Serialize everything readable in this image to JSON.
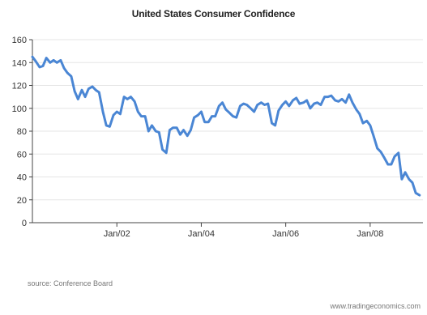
{
  "chart_data": {
    "type": "line",
    "title": "United States Consumer Confidence",
    "xlabel": "",
    "ylabel": "",
    "ylim": [
      0,
      160
    ],
    "yticks": [
      0,
      20,
      40,
      60,
      80,
      100,
      120,
      140,
      160
    ],
    "xticks": [
      {
        "label": "Jan/02",
        "x": 2002.0
      },
      {
        "label": "Jan/04",
        "x": 2004.0
      },
      {
        "label": "Jan/06",
        "x": 2006.0
      },
      {
        "label": "Jan/08",
        "x": 2008.0
      }
    ],
    "xlim": [
      2000.0,
      2009.25
    ],
    "grid": "horizontal",
    "series": [
      {
        "color": "#4a86d4",
        "x": [
          2000.0,
          2000.08,
          2000.17,
          2000.25,
          2000.33,
          2000.42,
          2000.5,
          2000.58,
          2000.67,
          2000.75,
          2000.83,
          2000.92,
          2001.0,
          2001.08,
          2001.17,
          2001.25,
          2001.33,
          2001.42,
          2001.5,
          2001.58,
          2001.67,
          2001.75,
          2001.83,
          2001.92,
          2002.0,
          2002.08,
          2002.17,
          2002.25,
          2002.33,
          2002.42,
          2002.5,
          2002.58,
          2002.67,
          2002.75,
          2002.83,
          2002.92,
          2003.0,
          2003.08,
          2003.17,
          2003.25,
          2003.33,
          2003.42,
          2003.5,
          2003.58,
          2003.67,
          2003.75,
          2003.83,
          2003.92,
          2004.0,
          2004.08,
          2004.17,
          2004.25,
          2004.33,
          2004.42,
          2004.5,
          2004.58,
          2004.67,
          2004.75,
          2004.83,
          2004.92,
          2005.0,
          2005.08,
          2005.17,
          2005.25,
          2005.33,
          2005.42,
          2005.5,
          2005.58,
          2005.67,
          2005.75,
          2005.83,
          2005.92,
          2006.0,
          2006.08,
          2006.17,
          2006.25,
          2006.33,
          2006.42,
          2006.5,
          2006.58,
          2006.67,
          2006.75,
          2006.83,
          2006.92,
          2007.0,
          2007.08,
          2007.17,
          2007.25,
          2007.33,
          2007.42,
          2007.5,
          2007.58,
          2007.67,
          2007.75,
          2007.83,
          2007.92,
          2008.0,
          2008.08,
          2008.17,
          2008.25,
          2008.33,
          2008.42,
          2008.5,
          2008.58,
          2008.67,
          2008.75,
          2008.83,
          2008.92,
          2009.0,
          2009.08,
          2009.17
        ],
        "values": [
          145,
          141,
          136,
          137,
          144,
          140,
          142,
          140,
          142,
          135,
          131,
          128,
          115,
          108,
          116,
          110,
          117,
          119,
          116,
          114,
          97,
          85,
          84,
          94,
          97,
          95,
          110,
          108,
          110,
          106,
          97,
          93,
          93,
          80,
          85,
          80,
          79,
          64,
          61,
          81,
          83,
          83,
          77,
          81,
          76,
          81,
          92,
          94,
          97,
          88,
          88,
          93,
          93,
          102,
          105,
          99,
          96,
          93,
          92,
          102,
          104,
          103,
          100,
          97,
          103,
          105,
          103,
          104,
          87,
          85,
          98,
          103,
          106,
          102,
          107,
          109,
          104,
          105,
          107,
          100,
          104,
          105,
          103,
          110,
          110,
          111,
          107,
          106,
          108,
          105,
          112,
          105,
          99,
          95,
          87,
          89,
          85,
          76,
          65,
          62,
          57,
          51,
          51,
          58,
          61,
          38,
          44,
          38,
          35,
          26,
          24
        ]
      }
    ]
  },
  "footer": {
    "source": "source: Conference Board",
    "watermark": "www.tradingeconomics.com"
  }
}
